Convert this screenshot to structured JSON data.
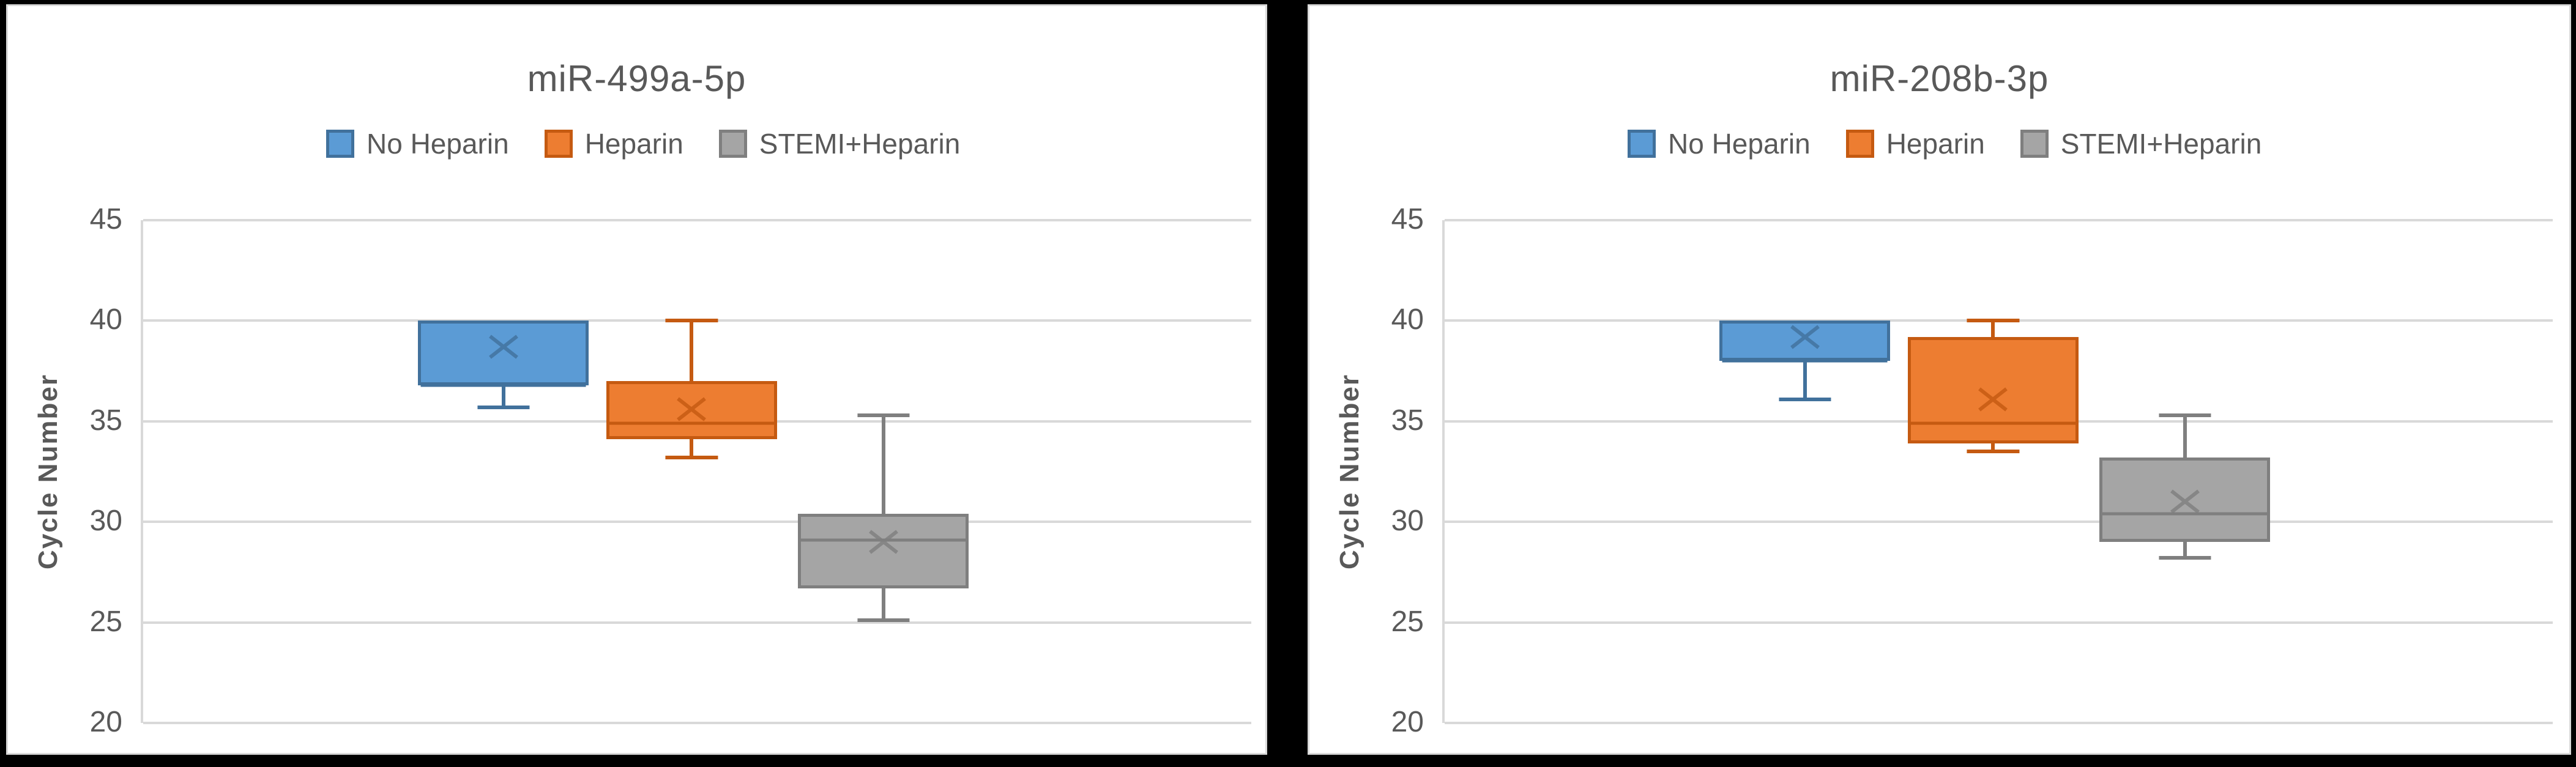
{
  "styles": {
    "page_bg": "#000000",
    "panel_bg": "#FFFFFF",
    "panel_border": "#D9D9D9",
    "grid_color": "#D9D9D9",
    "text_color": "#595959"
  },
  "chart_data": [
    {
      "type": "box",
      "title": "miR-499a-5p",
      "ylabel": "Cycle Number",
      "ylim": [
        20,
        45
      ],
      "yticks": [
        45,
        40,
        35,
        30,
        25,
        20
      ],
      "grid": true,
      "legend_position": "top-center",
      "series": [
        {
          "name": "No Heparin",
          "fill": "#5B9BD5",
          "stroke": "#41719C",
          "min": 35.7,
          "q1": 36.8,
          "median": 36.8,
          "q3": 40.0,
          "max": 40.0,
          "mean": 38.7
        },
        {
          "name": "Heparin",
          "fill": "#ED7D31",
          "stroke": "#C55A11",
          "min": 33.2,
          "q1": 34.1,
          "median": 34.9,
          "q3": 37.0,
          "max": 40.0,
          "mean": 35.6
        },
        {
          "name": "STEMI+Heparin",
          "fill": "#A5A5A5",
          "stroke": "#7F7F7F",
          "min": 25.1,
          "q1": 26.7,
          "median": 29.1,
          "q3": 30.4,
          "max": 35.3,
          "mean": 29.0
        }
      ]
    },
    {
      "type": "box",
      "title": "miR-208b-3p",
      "ylabel": "Cycle Number",
      "ylim": [
        20,
        45
      ],
      "yticks": [
        45,
        40,
        35,
        30,
        25,
        20
      ],
      "grid": true,
      "legend_position": "top-center",
      "series": [
        {
          "name": "No Heparin",
          "fill": "#5B9BD5",
          "stroke": "#41719C",
          "min": 36.1,
          "q1": 38.0,
          "median": 38.0,
          "q3": 40.0,
          "max": 40.0,
          "mean": 39.2
        },
        {
          "name": "Heparin",
          "fill": "#ED7D31",
          "stroke": "#C55A11",
          "min": 33.5,
          "q1": 33.9,
          "median": 34.9,
          "q3": 39.2,
          "max": 40.0,
          "mean": 36.1
        },
        {
          "name": "STEMI+Heparin",
          "fill": "#A5A5A5",
          "stroke": "#7F7F7F",
          "min": 28.2,
          "q1": 29.0,
          "median": 30.4,
          "q3": 33.2,
          "max": 35.3,
          "mean": 31.0
        }
      ]
    }
  ]
}
